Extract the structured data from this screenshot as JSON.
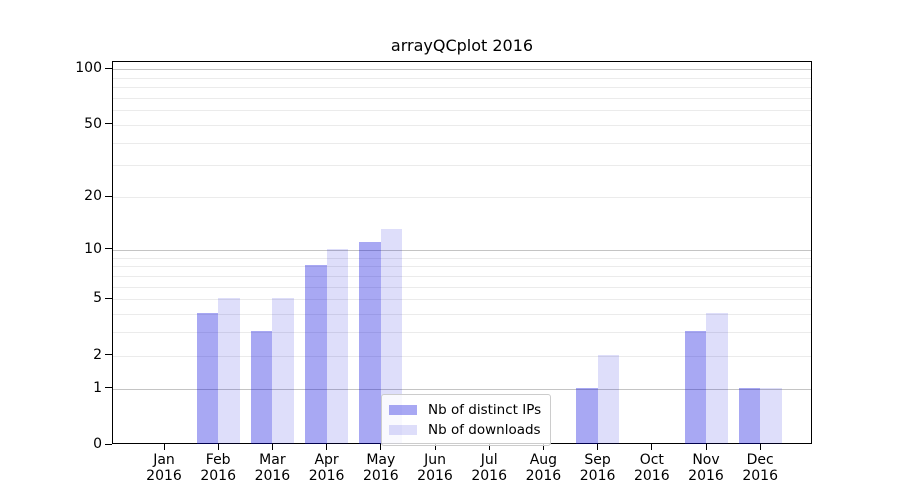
{
  "chart_data": {
    "type": "bar",
    "title": "arrayQCplot 2016",
    "year_label": "2016",
    "months": [
      "Jan",
      "Feb",
      "Mar",
      "Apr",
      "May",
      "Jun",
      "Jul",
      "Aug",
      "Sep",
      "Oct",
      "Nov",
      "Dec"
    ],
    "categories": [
      "Jan 2016",
      "Feb 2016",
      "Mar 2016",
      "Apr 2016",
      "May 2016",
      "Jun 2016",
      "Jul 2016",
      "Aug 2016",
      "Sep 2016",
      "Oct 2016",
      "Nov 2016",
      "Dec 2016"
    ],
    "series": [
      {
        "name": "Nb of distinct IPs",
        "color": "rgba(0,0,220,0.34)",
        "values": [
          0,
          4,
          3,
          8,
          11,
          0,
          0,
          0,
          1,
          0,
          3,
          1
        ]
      },
      {
        "name": "Nb of downloads",
        "color": "rgba(0,0,220,0.13)",
        "values": [
          0,
          5,
          5,
          10,
          13,
          0,
          0,
          0,
          2,
          0,
          4,
          1
        ]
      }
    ],
    "xlabel": "",
    "ylabel": "",
    "y_axis": {
      "scale": "log1p",
      "ticks": [
        0,
        1,
        2,
        5,
        10,
        20,
        50,
        100
      ],
      "minor_grid": [
        2,
        3,
        4,
        5,
        6,
        7,
        8,
        9,
        20,
        30,
        40,
        50,
        60,
        70,
        80,
        90
      ],
      "major_grid": [
        1,
        10,
        100
      ],
      "ylim": [
        0,
        109
      ]
    },
    "grid": true,
    "legend_position": "lower center"
  },
  "colors": {
    "minor_grid": "#ebebeb",
    "major_grid": "#c4c4c4",
    "axis": "#000000",
    "legend_border": "#cccccc",
    "legend_background": "rgba(255,255,255,0.8)"
  }
}
